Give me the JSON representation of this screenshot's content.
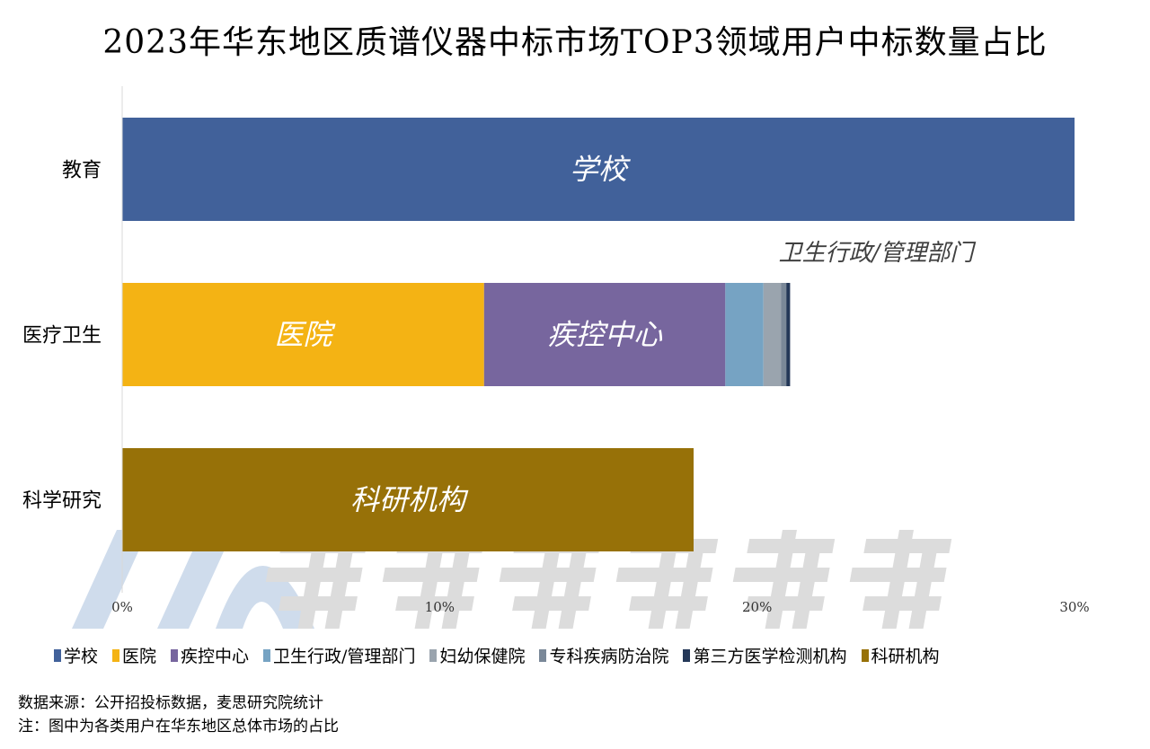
{
  "chart_data": {
    "type": "bar",
    "orientation": "horizontal",
    "stacked": true,
    "title": "2023年华东地区质谱仪器中标市场TOP3领域用户中标数量占比",
    "categories": [
      "教育",
      "医疗卫生",
      "科学研究"
    ],
    "xlim": [
      0,
      30
    ],
    "x_ticks": [
      "0%",
      "10%",
      "20%",
      "30%"
    ],
    "x_unit": "%",
    "grid": false,
    "legend_placement": "bottom",
    "series": [
      {
        "name": "学校",
        "color": "#41619a",
        "values": [
          30.0,
          0,
          0
        ]
      },
      {
        "name": "医院",
        "color": "#f4b314",
        "values": [
          0,
          11.4,
          0
        ]
      },
      {
        "name": "疾控中心",
        "color": "#77669e",
        "values": [
          0,
          7.6,
          0
        ]
      },
      {
        "name": "卫生行政/管理部门",
        "color": "#76a3c3",
        "values": [
          0,
          1.2,
          0
        ]
      },
      {
        "name": "妇幼保健院",
        "color": "#9aa4ae",
        "values": [
          0,
          0.55,
          0
        ]
      },
      {
        "name": "专科疾病防治院",
        "color": "#7a8898",
        "values": [
          0,
          0.17,
          0
        ]
      },
      {
        "name": "第三方医学检测机构",
        "color": "#243858",
        "values": [
          0,
          0.12,
          0
        ]
      },
      {
        "name": "科研机构",
        "color": "#977108",
        "values": [
          0,
          0,
          18.0
        ]
      }
    ],
    "bar_labels": [
      {
        "text": "学校",
        "category": "教育",
        "series": "学校"
      },
      {
        "text": "医院",
        "category": "医疗卫生",
        "series": "医院"
      },
      {
        "text": "疾控中心",
        "category": "医疗卫生",
        "series": "疾控中心"
      },
      {
        "text": "卫生行政/管理部门",
        "category": "医疗卫生",
        "series": "卫生行政/管理部门",
        "outside": true
      },
      {
        "text": "科研机构",
        "category": "科学研究",
        "series": "科研机构"
      }
    ]
  },
  "watermark": "麦思科学仪器",
  "notes": {
    "source": "数据来源：公开招投标数据，麦思研究院统计",
    "note": "注：图中为各类用户在华东地区总体市场的占比"
  }
}
